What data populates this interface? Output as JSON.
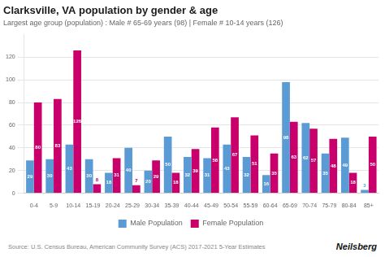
{
  "chart_data": {
    "type": "bar",
    "title": "Clarksville, VA population by gender & age",
    "subtitle": "Largest age group (population) : Male # 65-69 years (98) | Female # 10-14 years (126)",
    "categories": [
      "0-4",
      "5-9",
      "10-14",
      "15-19",
      "20-24",
      "25-29",
      "30-34",
      "35-39",
      "40-44",
      "45-49",
      "50-54",
      "55-59",
      "60-64",
      "65-69",
      "70-74",
      "75-79",
      "80-84",
      "85+"
    ],
    "series": [
      {
        "name": "Male Population",
        "color": "#5b9bd5",
        "values": [
          29,
          30,
          43,
          30,
          18,
          40,
          20,
          50,
          32,
          31,
          43,
          32,
          16,
          98,
          62,
          35,
          49,
          3
        ]
      },
      {
        "name": "Female Population",
        "color": "#c9006b",
        "values": [
          80,
          83,
          126,
          8,
          31,
          7,
          29,
          18,
          39,
          58,
          67,
          51,
          35,
          63,
          57,
          48,
          18,
          50
        ]
      }
    ],
    "ylim": [
      0,
      140
    ],
    "yticks": [
      0,
      20,
      40,
      60,
      80,
      100,
      120
    ],
    "grid": true,
    "legend": "bottom",
    "data_labels": true,
    "annotations": [
      "Source: U.S. Census Bureau, American Community Survey (ACS) 2017-2021 5-Year Estimates",
      "Neilsberg"
    ]
  }
}
